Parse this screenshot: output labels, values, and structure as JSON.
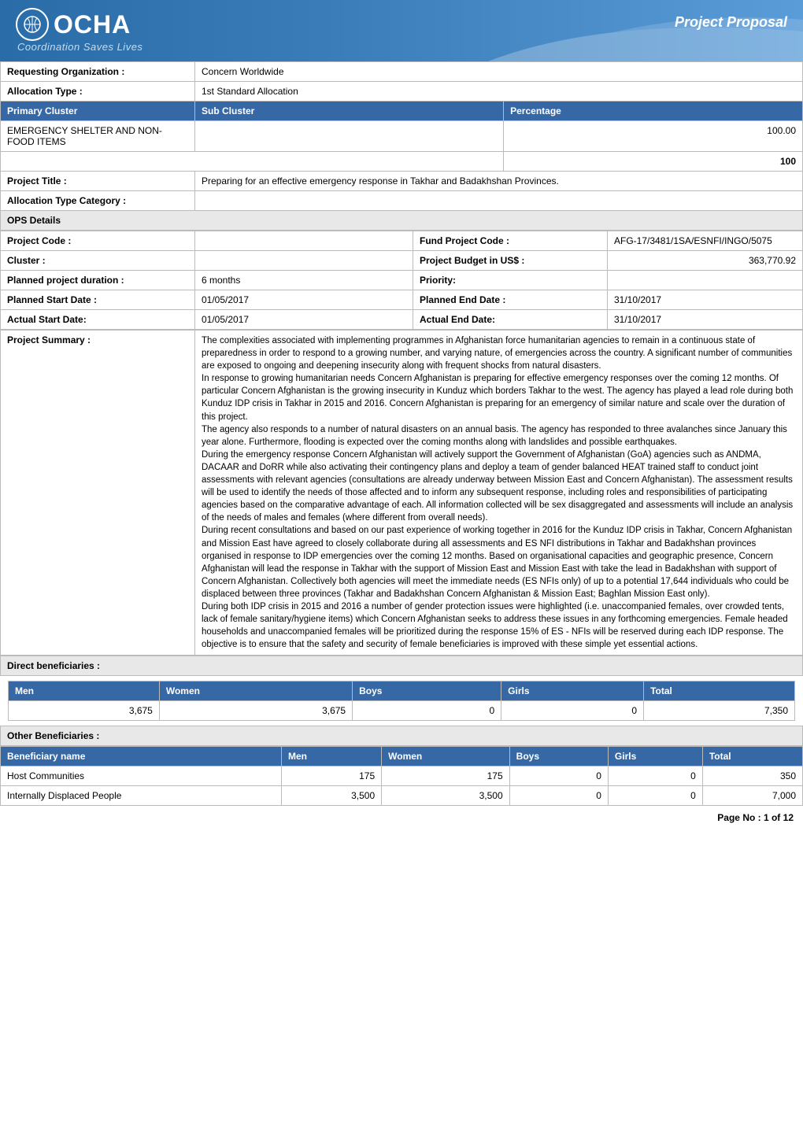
{
  "banner": {
    "logo_text": "OCHA",
    "tagline": "Coordination Saves Lives",
    "badge": "Project Proposal",
    "colors": {
      "bg_start": "#2a6ca8",
      "bg_end": "#5a9cd8",
      "text": "#ffffff"
    }
  },
  "rows": [
    {
      "label": "Requesting Organization :",
      "value": "Concern Worldwide"
    },
    {
      "label": "Allocation  Type :",
      "value": "1st Standard Allocation"
    }
  ],
  "cluster_header": {
    "c1": "Primary Cluster",
    "c2": "Sub Cluster",
    "c3": "Percentage"
  },
  "cluster_row": {
    "c1": "EMERGENCY SHELTER AND NON-FOOD ITEMS",
    "c2": "",
    "c3": "100.00"
  },
  "cluster_total": "100",
  "project_title": {
    "label": "Project Title :",
    "value": "Preparing for an effective emergency response in Takhar and Badakhshan Provinces."
  },
  "alloc_cat": {
    "label": "Allocation Type Category :",
    "value": ""
  },
  "ops_details": "OPS Details",
  "ops_rows": [
    {
      "l1": "Project Code :",
      "v1": "",
      "l2": "Fund Project Code :",
      "v2": "AFG-17/3481/1SA/ESNFI/INGO/5075"
    },
    {
      "l1": "Cluster :",
      "v1": "",
      "l2": "Project Budget in US$ :",
      "v2": "363,770.92",
      "v2_right": true
    },
    {
      "l1": "Planned project duration :",
      "v1": "6 months",
      "l2": "Priority:",
      "v2": ""
    },
    {
      "l1": "Planned Start Date :",
      "v1": "01/05/2017",
      "l2": "Planned End Date :",
      "v2": "31/10/2017"
    },
    {
      "l1": "Actual Start Date:",
      "v1": "01/05/2017",
      "l2": "Actual End Date:",
      "v2": "31/10/2017"
    }
  ],
  "summary_label": "Project Summary :",
  "summary_text": "The complexities associated with implementing programmes in Afghanistan force humanitarian agencies to remain in a continuous state of preparedness in order to respond to a growing number, and varying nature, of emergencies across the country. A significant number of communities are exposed to ongoing and deepening insecurity along with frequent shocks from natural disasters.\nIn response to growing humanitarian needs Concern Afghanistan is preparing for effective emergency responses over the coming 12 months. Of particular Concern Afghanistan is the growing insecurity in Kunduz which borders Takhar to the west. The agency has played a lead role during both Kunduz IDP crisis in Takhar in 2015 and 2016. Concern Afghanistan is preparing for an emergency of similar nature and scale over the duration of this project.\nThe agency also responds to a number of natural disasters on an annual basis. The agency has responded to three avalanches since January this year alone. Furthermore, flooding is expected over the coming months along with landslides and possible earthquakes.\nDuring the emergency response Concern Afghanistan will actively support the Government of Afghanistan (GoA) agencies such as ANDMA, DACAAR and DoRR while also activating their contingency plans and deploy a team of gender balanced HEAT trained staff to conduct joint assessments with relevant agencies (consultations are already underway between Mission East and Concern Afghanistan). The assessment results will be used to identify the needs of those affected and to inform any subsequent response, including roles and responsibilities of participating agencies based on the comparative advantage of each. All information collected will be sex disaggregated and assessments will include an analysis of the needs of males and females (where different from overall needs).\nDuring recent consultations and based on our past experience of working together in 2016 for the Kunduz IDP crisis in Takhar, Concern Afghanistan and Mission East have agreed to closely collaborate during all assessments and ES NFI distributions in Takhar and Badakhshan provinces organised in response to IDP emergencies over the coming 12 months. Based on organisational capacities and geographic presence, Concern Afghanistan will lead the response in Takhar with the support of Mission East and Mission East with take the lead in Badakhshan with support of Concern Afghanistan. Collectively both agencies will meet the immediate needs (ES NFIs only) of up to a potential 17,644 individuals who could be displaced between three provinces (Takhar and Badakhshan Concern Afghanistan & Mission East; Baghlan Mission East only).\nDuring both IDP crisis in 2015 and 2016 a number of gender protection issues were highlighted (i.e. unaccompanied females, over crowded tents, lack of female sanitary/hygiene items) which Concern Afghanistan seeks to address these issues in any forthcoming emergencies. Female headed households and unaccompanied females will be prioritized during the response 15% of ES - NFIs will be reserved during each IDP response. The objective is to ensure that the safety and security of female beneficiaries is improved with these simple yet essential actions.",
  "direct_bene_title": "Direct beneficiaries :",
  "direct_bene": {
    "headers": [
      "Men",
      "Women",
      "Boys",
      "Girls",
      "Total"
    ],
    "row": [
      "3,675",
      "3,675",
      "0",
      "0",
      "7,350"
    ]
  },
  "other_bene_title": "Other Beneficiaries :",
  "other_bene": {
    "headers": [
      "Beneficiary name",
      "Men",
      "Women",
      "Boys",
      "Girls",
      "Total"
    ],
    "rows": [
      [
        "Host Communities",
        "175",
        "175",
        "0",
        "0",
        "350"
      ],
      [
        "Internally Displaced People",
        "3,500",
        "3,500",
        "0",
        "0",
        "7,000"
      ]
    ]
  },
  "footer": "Page No : 1 of 12",
  "colors": {
    "header_blue": "#3668a6",
    "header_gray": "#e8e8e8",
    "border": "#bbbbbb"
  }
}
